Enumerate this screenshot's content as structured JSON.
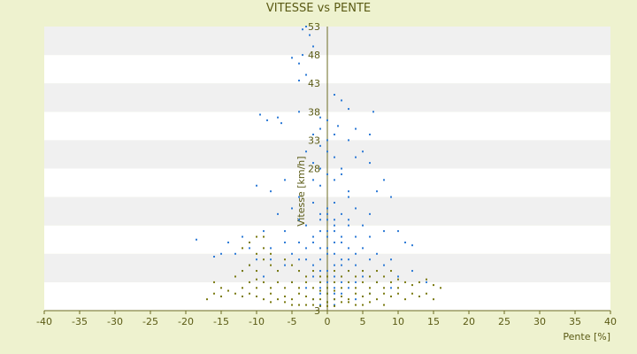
{
  "colors": {
    "background": "#eef2cf",
    "plot_band_light": "#ffffff",
    "plot_band_dark": "#f0f0f0",
    "series_blue": "#2e7bd6",
    "series_olive": "#7a7a10",
    "axis": "#6b6b22",
    "text": "#5a5a14"
  },
  "chart_data": {
    "type": "scatter",
    "title": "VITESSE vs PENTE",
    "xlabel": "Pente [%]",
    "ylabel": "Vitesse [km/h]",
    "xlim": [
      -40,
      40
    ],
    "ylim": [
      3,
      53
    ],
    "x_ticks": [
      -40,
      -35,
      -30,
      -25,
      -20,
      -15,
      -10,
      -5,
      0,
      5,
      10,
      15,
      20,
      25,
      30,
      35,
      40
    ],
    "y_ticks": [
      3,
      8,
      13,
      18,
      23,
      28,
      33,
      38,
      43,
      48,
      53
    ],
    "y_tick_labels_shown": [
      "3",
      "28",
      "33",
      "38",
      "43",
      "48",
      "53"
    ],
    "grid": "horizontal alternating bands",
    "legend": "none",
    "series": [
      {
        "color": "#2e7bd6",
        "points": [
          [
            -3,
            53
          ],
          [
            -3.5,
            52.5
          ],
          [
            -2.5,
            51.5
          ],
          [
            -5,
            47.5
          ],
          [
            -4,
            46.5
          ],
          [
            -3.5,
            48
          ],
          [
            -2,
            49.5
          ],
          [
            -3,
            44.5
          ],
          [
            -4,
            43.5
          ],
          [
            1,
            41
          ],
          [
            2,
            40
          ],
          [
            3,
            38.5
          ],
          [
            6.5,
            38
          ],
          [
            -9.5,
            37.5
          ],
          [
            -7,
            37
          ],
          [
            -8.5,
            36.5
          ],
          [
            -6.5,
            36
          ],
          [
            -4,
            38
          ],
          [
            -1,
            37
          ],
          [
            0,
            36.5
          ],
          [
            1.5,
            35.5
          ],
          [
            4,
            35
          ],
          [
            6,
            34
          ],
          [
            -2,
            34
          ],
          [
            3,
            33
          ],
          [
            -1,
            32
          ],
          [
            0,
            31
          ],
          [
            1,
            30
          ],
          [
            -3,
            31
          ],
          [
            5,
            31
          ],
          [
            6,
            29
          ],
          [
            2,
            28
          ],
          [
            -1,
            28
          ],
          [
            0,
            27
          ],
          [
            8,
            26
          ],
          [
            -6,
            26
          ],
          [
            -10,
            25
          ],
          [
            -8,
            24
          ],
          [
            7,
            24
          ],
          [
            9,
            23
          ],
          [
            -4,
            23
          ],
          [
            3,
            23
          ],
          [
            1,
            22
          ],
          [
            -2,
            22
          ],
          [
            0,
            21
          ],
          [
            4,
            21
          ],
          [
            -5,
            21
          ],
          [
            -7,
            20
          ],
          [
            6,
            20
          ],
          [
            2,
            20
          ],
          [
            -1,
            19
          ],
          [
            0,
            19
          ],
          [
            1,
            18
          ],
          [
            -3,
            18
          ],
          [
            3,
            18
          ],
          [
            5,
            18
          ],
          [
            -6,
            17
          ],
          [
            -9,
            17
          ],
          [
            8,
            17
          ],
          [
            10,
            17
          ],
          [
            -12,
            16
          ],
          [
            -18.5,
            15.5
          ],
          [
            -14,
            15
          ],
          [
            -11,
            14
          ],
          [
            12,
            14.5
          ],
          [
            11,
            15
          ],
          [
            -15,
            13
          ],
          [
            -16,
            12.5
          ],
          [
            -13,
            13
          ],
          [
            -10,
            12
          ],
          [
            -8,
            14
          ],
          [
            7,
            13
          ],
          [
            9,
            12
          ],
          [
            -2,
            16
          ],
          [
            0,
            16
          ],
          [
            2,
            16
          ],
          [
            4,
            16
          ],
          [
            -4,
            15
          ],
          [
            1,
            15
          ],
          [
            -1,
            14
          ],
          [
            3,
            14
          ],
          [
            5,
            14
          ],
          [
            -5,
            13
          ],
          [
            0,
            13
          ],
          [
            2,
            12
          ],
          [
            6,
            12
          ],
          [
            -3,
            12
          ],
          [
            -6,
            11
          ],
          [
            1,
            11
          ],
          [
            4,
            11
          ],
          [
            8,
            11
          ],
          [
            -1,
            10
          ],
          [
            0,
            10
          ],
          [
            3,
            10
          ],
          [
            -4,
            10
          ],
          [
            -7,
            10
          ],
          [
            2,
            9
          ],
          [
            5,
            9
          ],
          [
            -2,
            9
          ],
          [
            0,
            8
          ],
          [
            -5,
            8
          ],
          [
            7,
            8
          ],
          [
            4,
            8
          ],
          [
            1,
            7
          ],
          [
            -3,
            7
          ],
          [
            9,
            7
          ],
          [
            3,
            7
          ],
          [
            0,
            6
          ],
          [
            -1,
            6
          ],
          [
            2,
            6
          ],
          [
            6,
            6
          ],
          [
            -2,
            5
          ],
          [
            1,
            5
          ],
          [
            4,
            5
          ],
          [
            0,
            4.5
          ],
          [
            -1,
            4
          ],
          [
            1,
            4
          ],
          [
            10,
            9
          ],
          [
            12,
            10
          ],
          [
            14,
            8
          ],
          [
            -12,
            10
          ],
          [
            -9,
            9
          ],
          [
            -11,
            11
          ],
          [
            3,
            24
          ],
          [
            -1,
            25
          ],
          [
            1,
            26
          ],
          [
            2,
            27
          ],
          [
            -2,
            29
          ],
          [
            0,
            33
          ],
          [
            -1,
            35
          ],
          [
            1,
            34
          ],
          [
            4,
            30
          ],
          [
            -2,
            26
          ],
          [
            -4,
            19
          ],
          [
            3,
            19
          ],
          [
            -6,
            15
          ],
          [
            6,
            16
          ],
          [
            5,
            10
          ],
          [
            -8,
            12
          ],
          [
            0,
            14
          ],
          [
            1,
            13
          ],
          [
            -1,
            12
          ],
          [
            2,
            11
          ],
          [
            -2,
            11
          ],
          [
            0,
            9
          ],
          [
            1,
            9
          ],
          [
            -1,
            8
          ],
          [
            2,
            8
          ],
          [
            0,
            7
          ],
          [
            1,
            6
          ],
          [
            -1,
            7
          ],
          [
            3,
            12
          ],
          [
            -3,
            14
          ],
          [
            4,
            13
          ],
          [
            -4,
            12
          ],
          [
            2,
            15
          ],
          [
            -2,
            15
          ],
          [
            0,
            17
          ],
          [
            1,
            17
          ],
          [
            -1,
            17
          ],
          [
            0,
            20
          ],
          [
            1,
            19
          ],
          [
            -1,
            20
          ]
        ]
      },
      {
        "color": "#7a7a10",
        "points": [
          [
            -16,
            6
          ],
          [
            -15,
            5.5
          ],
          [
            -17,
            5
          ],
          [
            -14,
            6.5
          ],
          [
            -13,
            6
          ],
          [
            -12,
            5.5
          ],
          [
            -11,
            6
          ],
          [
            -10,
            5.5
          ],
          [
            -9,
            5
          ],
          [
            -8,
            6
          ],
          [
            -7,
            5
          ],
          [
            -6,
            5.5
          ],
          [
            -5,
            5
          ],
          [
            -4,
            6
          ],
          [
            -3,
            5.5
          ],
          [
            -2,
            5
          ],
          [
            -1,
            5
          ],
          [
            0,
            4.5
          ],
          [
            1,
            5
          ],
          [
            2,
            5.5
          ],
          [
            3,
            5
          ],
          [
            4,
            6
          ],
          [
            5,
            5.5
          ],
          [
            6,
            6
          ],
          [
            7,
            5
          ],
          [
            8,
            6
          ],
          [
            9,
            5.5
          ],
          [
            10,
            6
          ],
          [
            11,
            5
          ],
          [
            12,
            6
          ],
          [
            13,
            5.5
          ],
          [
            14,
            6
          ],
          [
            15,
            5
          ],
          [
            16,
            7
          ],
          [
            15,
            7.5
          ],
          [
            13,
            8
          ],
          [
            12,
            7.5
          ],
          [
            11,
            8
          ],
          [
            10,
            7
          ],
          [
            9,
            8
          ],
          [
            8,
            7
          ],
          [
            7,
            8
          ],
          [
            6,
            7
          ],
          [
            5,
            8
          ],
          [
            4,
            7
          ],
          [
            3,
            8
          ],
          [
            2,
            7
          ],
          [
            1,
            8
          ],
          [
            0,
            7
          ],
          [
            -1,
            8
          ],
          [
            -2,
            7
          ],
          [
            -3,
            8
          ],
          [
            -4,
            7
          ],
          [
            -5,
            8
          ],
          [
            -6,
            7
          ],
          [
            -7,
            8
          ],
          [
            -8,
            7
          ],
          [
            -9,
            8
          ],
          [
            -10,
            7
          ],
          [
            -11,
            8
          ],
          [
            -12,
            7
          ],
          [
            -13,
            9
          ],
          [
            -12,
            10
          ],
          [
            -11,
            11
          ],
          [
            -10,
            10
          ],
          [
            -9,
            12
          ],
          [
            -8,
            11
          ],
          [
            -7,
            10
          ],
          [
            -6,
            12
          ],
          [
            -5,
            11
          ],
          [
            -4,
            10
          ],
          [
            -3,
            9
          ],
          [
            -2,
            10
          ],
          [
            -1,
            9
          ],
          [
            0,
            9
          ],
          [
            1,
            10
          ],
          [
            2,
            9
          ],
          [
            3,
            10
          ],
          [
            4,
            9
          ],
          [
            5,
            10
          ],
          [
            6,
            9
          ],
          [
            7,
            10
          ],
          [
            8,
            9
          ],
          [
            9,
            10
          ],
          [
            -10,
            13
          ],
          [
            -9,
            14
          ],
          [
            -8,
            13
          ],
          [
            -11,
            15
          ],
          [
            -10,
            16
          ],
          [
            -12,
            14
          ],
          [
            -9,
            16
          ],
          [
            0,
            6
          ],
          [
            1,
            6.5
          ],
          [
            -1,
            6.5
          ],
          [
            2,
            4.5
          ],
          [
            -2,
            4
          ],
          [
            3,
            4.5
          ],
          [
            -3,
            4
          ],
          [
            5,
            4
          ],
          [
            -5,
            4
          ],
          [
            6,
            4.5
          ],
          [
            -6,
            4.5
          ],
          [
            8,
            4
          ],
          [
            -8,
            4.5
          ],
          [
            -15,
            7
          ],
          [
            -16,
            8
          ],
          [
            14,
            8.5
          ],
          [
            -4,
            4
          ],
          [
            4,
            4
          ],
          [
            0,
            3.8
          ],
          [
            1,
            3.8
          ],
          [
            -1,
            3.8
          ],
          [
            10,
            8.5
          ],
          [
            -10,
            8.5
          ]
        ]
      }
    ]
  }
}
